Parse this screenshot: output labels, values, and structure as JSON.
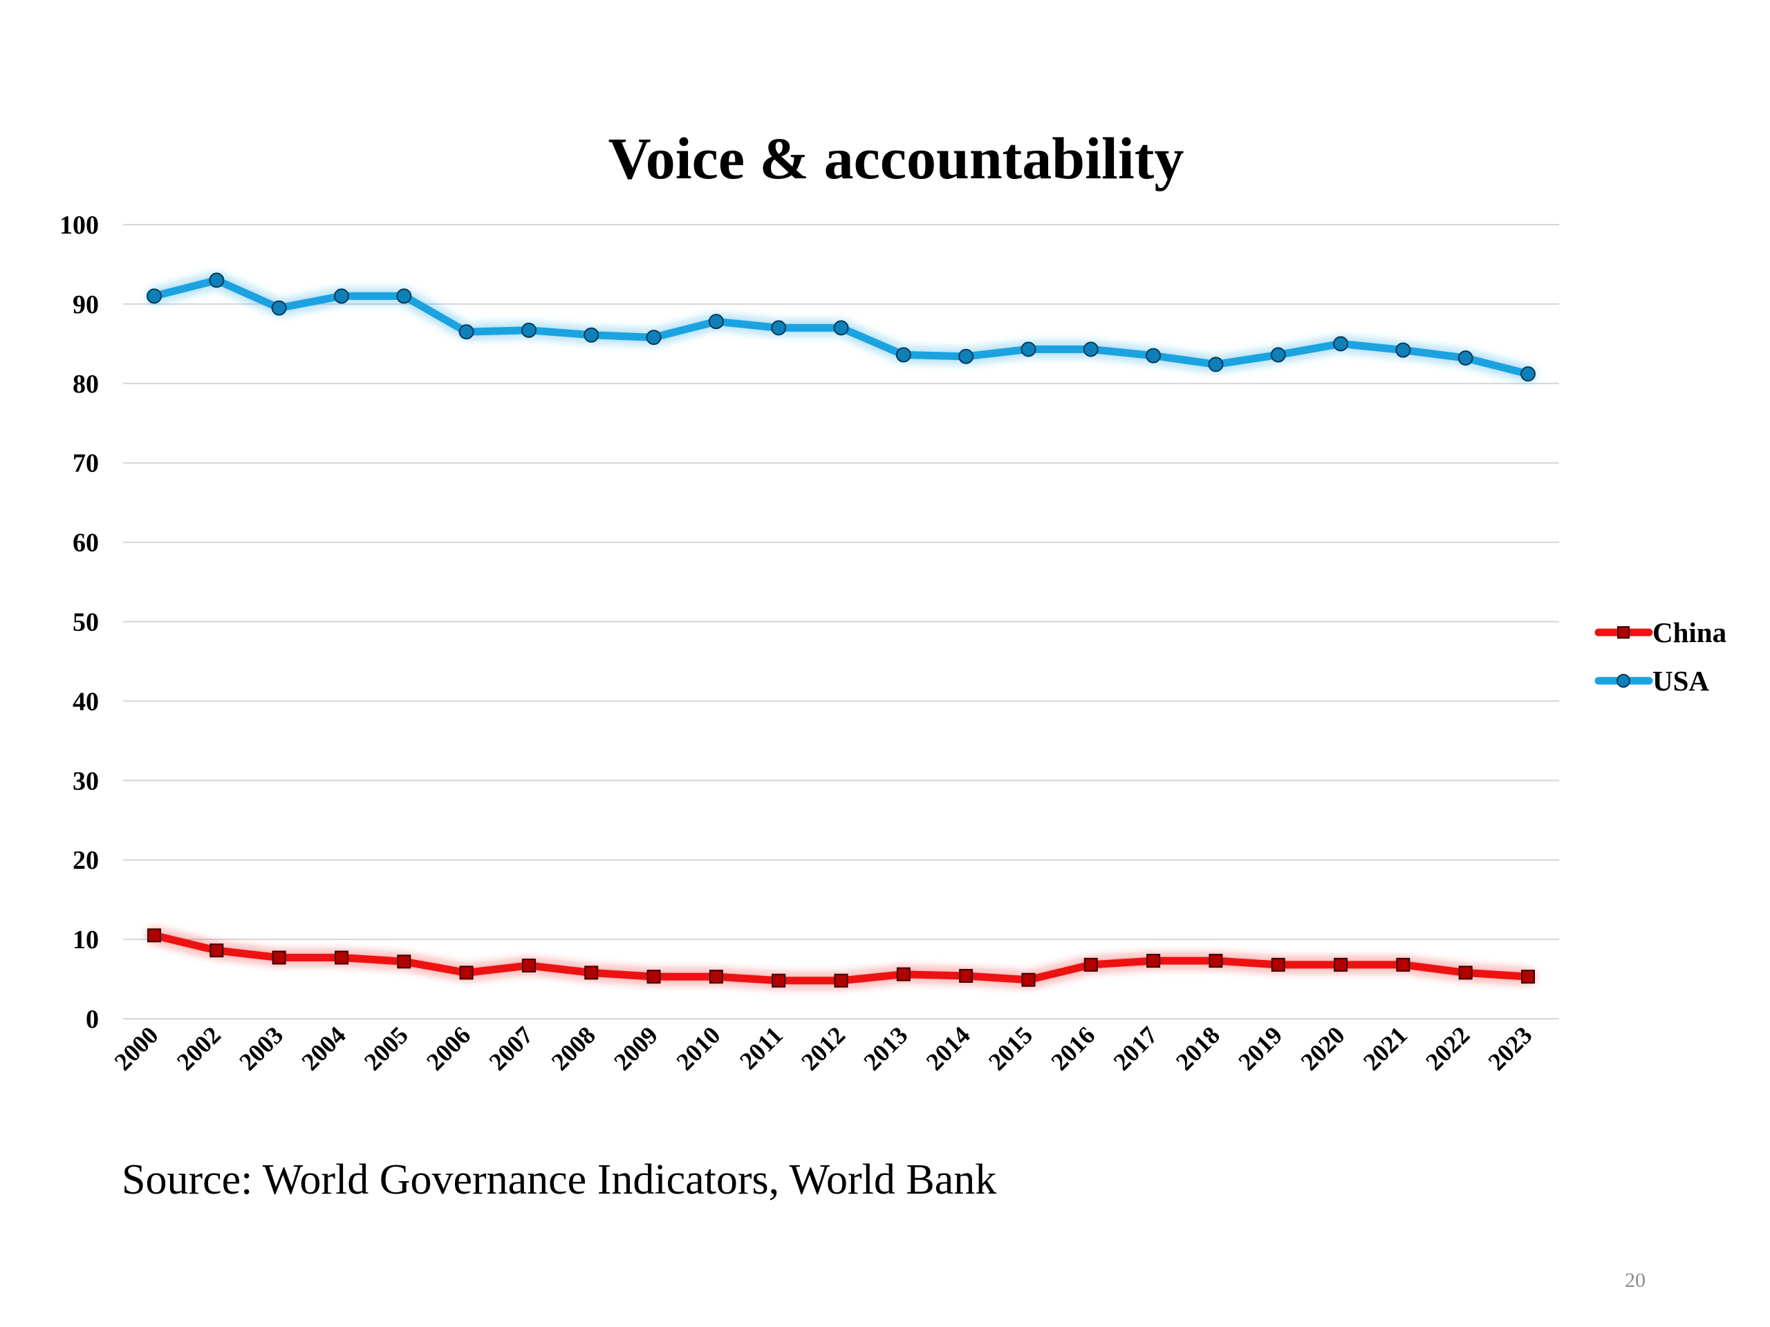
{
  "slide": {
    "source": "Source: World Governance Indicators, World Bank",
    "page_number": "20"
  },
  "colors": {
    "china": "#ee1111",
    "usa": "#1aa3e0",
    "grid": "#d6d6d6"
  },
  "chart_data": {
    "type": "line",
    "title": "Voice & accountability",
    "xlabel": "",
    "ylabel": "",
    "ylim": [
      0,
      100
    ],
    "yticks": [
      "0",
      "10",
      "20",
      "30",
      "40",
      "50",
      "60",
      "70",
      "80",
      "90",
      "100"
    ],
    "grid": true,
    "legend": "right",
    "categories": [
      "2000",
      "2002",
      "2003",
      "2004",
      "2005",
      "2006",
      "2007",
      "2008",
      "2009",
      "2010",
      "2011",
      "2012",
      "2013",
      "2014",
      "2015",
      "2016",
      "2017",
      "2018",
      "2019",
      "2020",
      "2021",
      "2022",
      "2023"
    ],
    "series": [
      {
        "name": "China",
        "color": "#ee1111",
        "marker": "square",
        "values": [
          10.5,
          8.6,
          7.7,
          7.7,
          7.2,
          5.8,
          6.7,
          5.8,
          5.3,
          5.3,
          4.8,
          4.8,
          5.6,
          5.4,
          4.9,
          6.8,
          7.3,
          7.3,
          6.8,
          6.8,
          6.8,
          5.8,
          5.3
        ]
      },
      {
        "name": "USA",
        "color": "#1aa3e0",
        "marker": "circle",
        "values": [
          91.0,
          93.0,
          89.5,
          91.0,
          91.0,
          86.5,
          86.7,
          86.1,
          85.8,
          87.8,
          87.0,
          87.0,
          83.6,
          83.4,
          84.3,
          84.3,
          83.5,
          82.4,
          83.6,
          85.0,
          84.2,
          83.2,
          81.2
        ]
      }
    ]
  }
}
